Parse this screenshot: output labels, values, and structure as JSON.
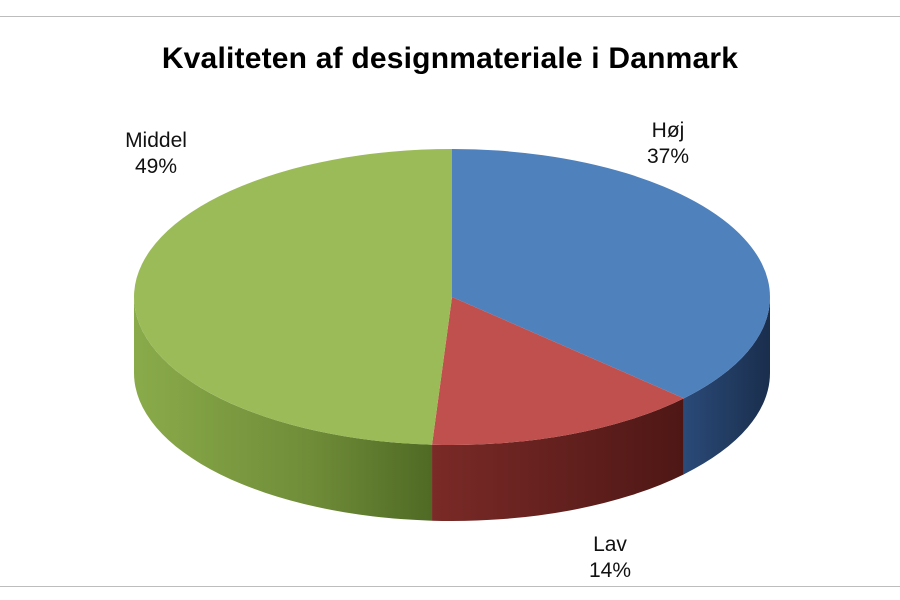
{
  "chart_data": {
    "type": "pie",
    "title": "Kvaliteten af designmateriale i Danmark",
    "slices": [
      {
        "label": "Høj",
        "value": 37,
        "value_label": "37%",
        "color": "#4F81BD"
      },
      {
        "label": "Lav",
        "value": 14,
        "value_label": "14%",
        "color": "#C0504D"
      },
      {
        "label": "Middel",
        "value": 49,
        "value_label": "49%",
        "color": "#9BBB59"
      }
    ]
  }
}
